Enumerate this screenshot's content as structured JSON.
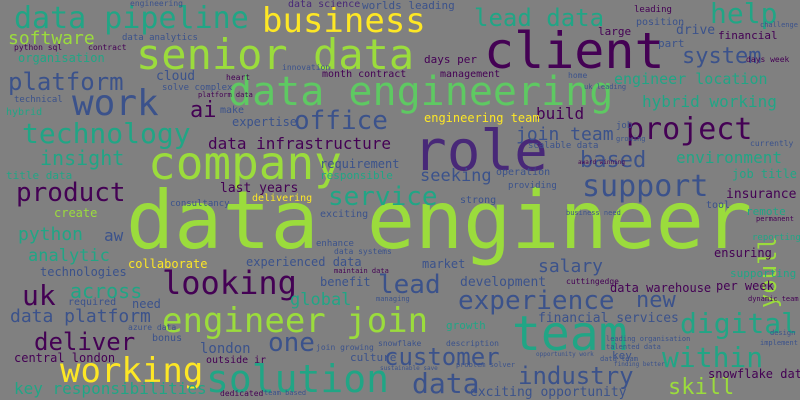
{
  "palette": {
    "background": "#808080",
    "lime": "#9bdc3c",
    "green": "#5ec962",
    "teal": "#21a585",
    "cyan": "#2a9d8f",
    "blue": "#31688e",
    "indigo": "#3b528b",
    "purple": "#482878",
    "darkpurple": "#440154",
    "yellow": "#fde725"
  },
  "words": [
    "data engineer",
    "team",
    "data engineering",
    "role",
    "senior data",
    "client",
    "company",
    "work",
    "business",
    "data pipeline",
    "solution",
    "engineer join",
    "working",
    "technology",
    "support",
    "project",
    "looking",
    "experience",
    "customer",
    "industry",
    "deliver",
    "platform",
    "lead data",
    "service",
    "product",
    "digital",
    "within",
    "office",
    "data infrastructure",
    "uk",
    "data",
    "help",
    "software",
    "system",
    "skill",
    "lead",
    "one",
    "new",
    "youll",
    "based",
    "insight",
    "environment",
    "hybrid working",
    "engineer location",
    "data platform",
    "join team",
    "ai",
    "python",
    "analytic",
    "across",
    "salary",
    "key responsibilities",
    "central london",
    "london",
    "development",
    "financial services",
    "data warehouse",
    "per week",
    "last years",
    "seeking",
    "build",
    "cloud",
    "job title",
    "insurance",
    "collaborate",
    "global",
    "aw",
    "create",
    "technologies",
    "snowflake data",
    "ensuring",
    "engineering team",
    "expertise",
    "experienced data",
    "market",
    "benefit",
    "need",
    "exciting opportunity",
    "data science",
    "worlds leading",
    "drive",
    "position",
    "large",
    "part",
    "financial",
    "organisation",
    "python sql",
    "make",
    "heart",
    "strong",
    "operation",
    "requirement",
    "title data",
    "tool",
    "remote",
    "supporting",
    "growth",
    "culture",
    "outside ir",
    "bonus",
    "required",
    "days per",
    "month contract",
    "management",
    "home",
    "data analytics",
    "solve complex",
    "innovation",
    "consultancy",
    "delivering",
    "providing",
    "enhance",
    "data systems",
    "maintain data",
    "managing",
    "cuttingedge",
    "azure data",
    "join growing",
    "snowflake",
    "description",
    "dedicated",
    "team based",
    "problem solver",
    "responsible",
    "exciting",
    "contract",
    "platform data",
    "leading organisation",
    "talented data",
    "uk leading",
    "hybrid",
    "technical",
    "currently",
    "job",
    "growing",
    "challenge",
    "days week",
    "permanent",
    "reporting",
    "design",
    "implement",
    "dynamic team",
    "award winning",
    "key",
    "data team",
    "finding better",
    "engineering",
    "scalable data",
    "business need",
    "sustainable save",
    "opportunity work",
    "leading"
  ]
}
